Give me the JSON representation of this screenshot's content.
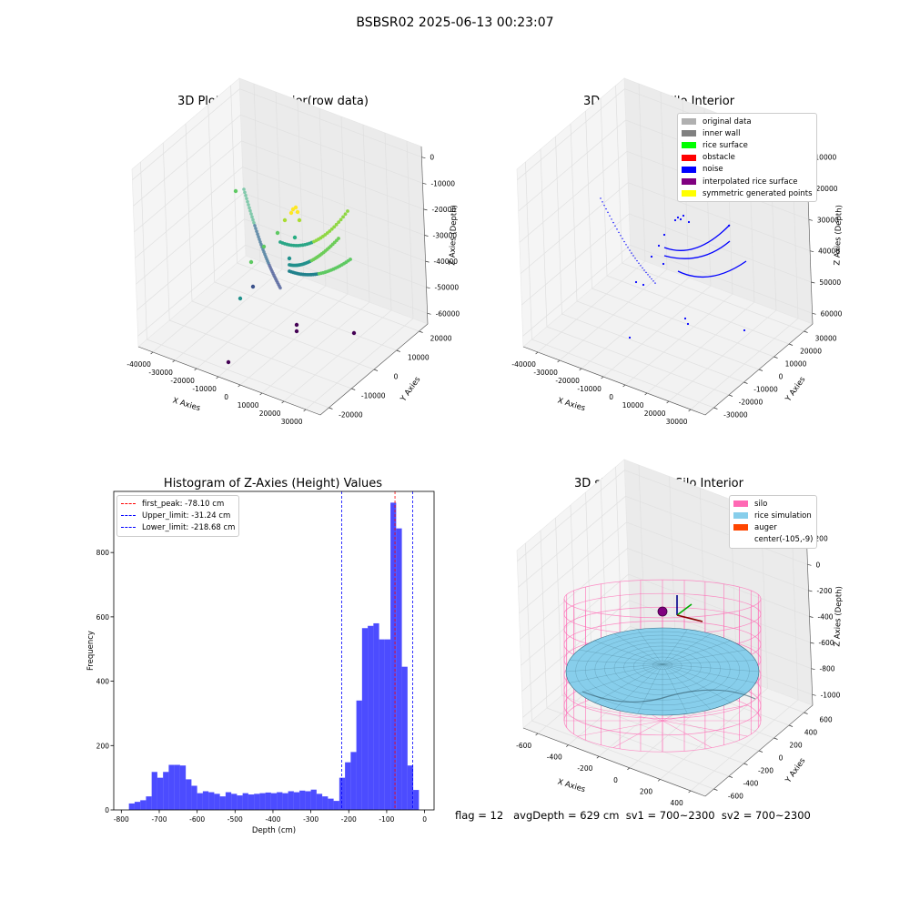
{
  "figure": {
    "suptitle": "BSBSR02 2025-06-13 00:23:07",
    "status_line": "flag = 12   avgDepth = 629 cm  sv1 = 700~2300  sv2 = 700~2300"
  },
  "chart_data": [
    {
      "type": "scatter",
      "id": "raw",
      "projection": "3d",
      "title": "3D Plot of Silo Interior(row data)",
      "xlabel": "X Axies",
      "ylabel": "Y Axies",
      "zlabel": "Z Axies (Depth)",
      "xticks": [
        "-40000",
        "-30000",
        "-20000",
        "-10000",
        "0",
        "10000",
        "20000",
        "30000"
      ],
      "yticks": [
        "-20000",
        "-10000",
        "0",
        "10000",
        "20000"
      ],
      "zticks": [
        "0",
        "-10000",
        "-20000",
        "-30000",
        "-40000",
        "-50000",
        "-60000"
      ],
      "colormap": "viridis",
      "grid": true
    },
    {
      "type": "scatter",
      "id": "classify",
      "projection": "3d",
      "title": "3D classify of Silo Interior",
      "xlabel": "X Axies",
      "ylabel": "Y Axies",
      "zlabel": "Z Axies (Depth)",
      "xticks": [
        "-40000",
        "-30000",
        "-20000",
        "-10000",
        "0",
        "10000",
        "20000",
        "30000"
      ],
      "yticks": [
        "-30000",
        "-20000",
        "-10000",
        "0",
        "10000",
        "20000",
        "30000"
      ],
      "zticks": [
        "10000",
        "20000",
        "30000",
        "40000",
        "50000",
        "60000"
      ],
      "legend": [
        {
          "label": "original data",
          "color": "#b0b0b0"
        },
        {
          "label": "inner wall",
          "color": "#808080"
        },
        {
          "label": "rice surface",
          "color": "#00ff00"
        },
        {
          "label": "obstacle",
          "color": "#ff0000"
        },
        {
          "label": "noise",
          "color": "#0000ff"
        },
        {
          "label": "interpolated rice surface",
          "color": "#800080"
        },
        {
          "label": "symmetric generated points",
          "color": "#ffff00"
        }
      ],
      "legend_loc": "upper right",
      "grid": true
    },
    {
      "type": "bar",
      "id": "hist",
      "title": "Histogram of Z-Axies (Height) Values",
      "xlabel": "Depth (cm)",
      "ylabel": "Frequency",
      "xlim": [
        -820,
        25
      ],
      "ylim": [
        0,
        990
      ],
      "xticks": [
        -800,
        -700,
        -600,
        -500,
        -400,
        -300,
        -200,
        -100,
        0
      ],
      "yticks": [
        0,
        200,
        400,
        600,
        800
      ],
      "bin_start": -780,
      "bin_width": 15,
      "values": [
        20,
        25,
        30,
        42,
        118,
        100,
        118,
        140,
        140,
        138,
        95,
        75,
        52,
        58,
        55,
        50,
        42,
        55,
        50,
        45,
        52,
        48,
        50,
        52,
        54,
        52,
        55,
        52,
        58,
        55,
        60,
        58,
        63,
        50,
        42,
        35,
        28,
        100,
        148,
        180,
        340,
        565,
        572,
        580,
        530,
        530,
        955,
        875,
        445,
        138,
        62
      ],
      "bar_color": "#0000ff",
      "bar_alpha": 0.7,
      "vlines": [
        {
          "x": -78.1,
          "color": "#ff0000",
          "label": "first_peak: -78.10 cm"
        },
        {
          "x": -31.24,
          "color": "#0000ff",
          "label": "Upper_limit: -31.24 cm"
        },
        {
          "x": -218.68,
          "color": "#0000ff",
          "label": "Lower_limit: -218.68 cm"
        }
      ],
      "legend_loc": "upper left"
    },
    {
      "type": "area",
      "id": "sim",
      "projection": "3d",
      "title": "3D simulation of Silo Interior",
      "xlabel": "X Axies",
      "ylabel": "Y Axies",
      "zlabel": "Z Axies (Depth)",
      "xticks": [
        "-600",
        "-400",
        "-200",
        "0",
        "200",
        "400"
      ],
      "yticks": [
        "-600",
        "-400",
        "-200",
        "0",
        "200",
        "400",
        "600"
      ],
      "zticks": [
        "200",
        "0",
        "-200",
        "-400",
        "-600",
        "-800",
        "-1000"
      ],
      "legend": [
        {
          "label": "silo",
          "color": "#ff69b4"
        },
        {
          "label": "rice simulation",
          "color": "#87ceeb"
        },
        {
          "label": "auger",
          "color": "#ff4500"
        },
        {
          "label": "center(-105,-9)",
          "color": ""
        }
      ],
      "legend_loc": "upper right",
      "grid": true
    }
  ]
}
